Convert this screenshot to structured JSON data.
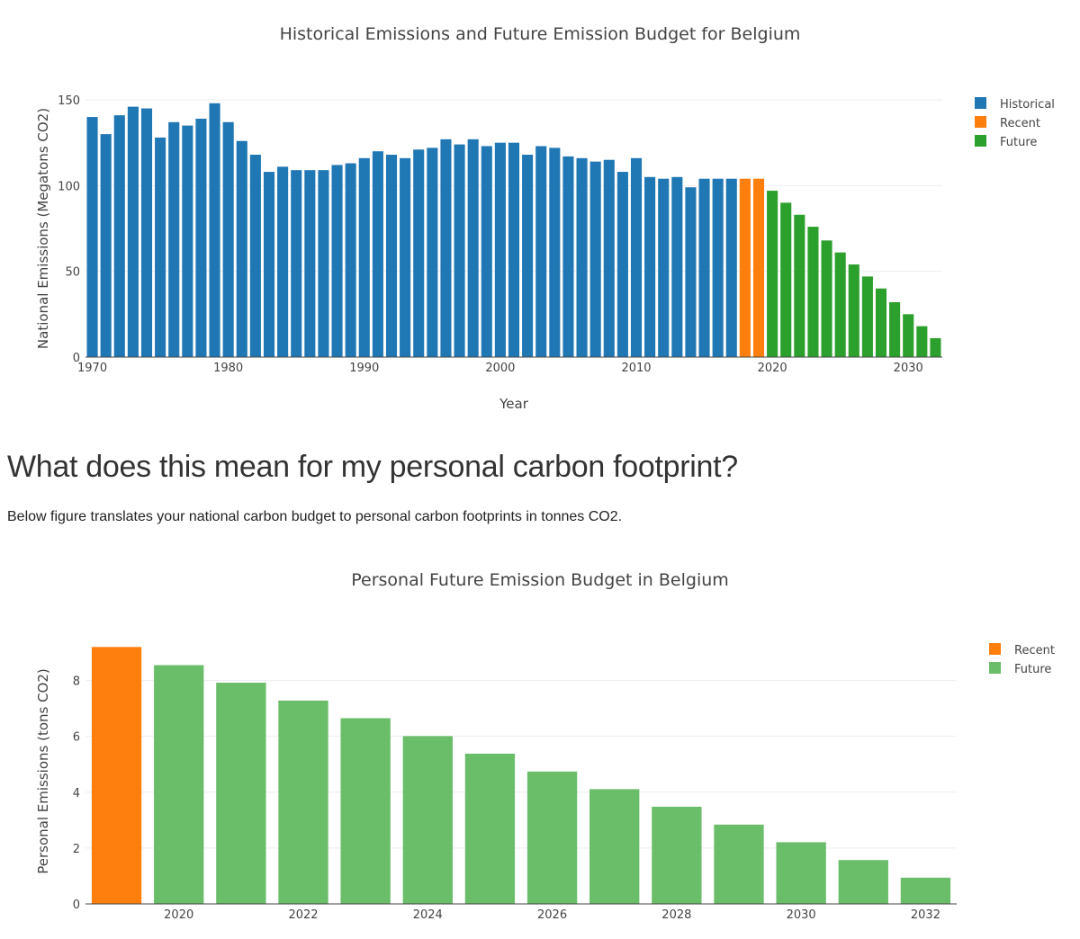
{
  "section": {
    "heading": "What does this mean for my personal carbon footprint?",
    "text": "Below figure translates your national carbon budget to personal carbon footprints in tonnes CO2."
  },
  "chart_data": [
    {
      "type": "bar",
      "title": "Historical Emissions and Future Emission Budget for Belgium",
      "xlabel": "Year",
      "ylabel": "National Emissions (Megatons CO2)",
      "xlim": [
        1969.5,
        2032.5
      ],
      "ylim": [
        0,
        150
      ],
      "xticks": [
        1970,
        1980,
        1990,
        2000,
        2010,
        2020,
        2030
      ],
      "yticks": [
        0,
        50,
        100,
        150
      ],
      "grid": true,
      "legend": "top-right",
      "series": [
        {
          "name": "Historical",
          "color": "#1f77b4",
          "x": [
            1970,
            1971,
            1972,
            1973,
            1974,
            1975,
            1976,
            1977,
            1978,
            1979,
            1980,
            1981,
            1982,
            1983,
            1984,
            1985,
            1986,
            1987,
            1988,
            1989,
            1990,
            1991,
            1992,
            1993,
            1994,
            1995,
            1996,
            1997,
            1998,
            1999,
            2000,
            2001,
            2002,
            2003,
            2004,
            2005,
            2006,
            2007,
            2008,
            2009,
            2010,
            2011,
            2012,
            2013,
            2014,
            2015,
            2016,
            2017
          ],
          "values": [
            140,
            130,
            141,
            146,
            145,
            128,
            137,
            135,
            139,
            148,
            137,
            126,
            118,
            108,
            111,
            109,
            109,
            109,
            112,
            113,
            116,
            120,
            118,
            116,
            121,
            122,
            127,
            124,
            127,
            123,
            125,
            125,
            118,
            123,
            122,
            117,
            116,
            114,
            115,
            108,
            116,
            105,
            104,
            105,
            99,
            104,
            104,
            104
          ]
        },
        {
          "name": "Recent",
          "color": "#ff7f0e",
          "x": [
            2018,
            2019
          ],
          "values": [
            104,
            104
          ]
        },
        {
          "name": "Future",
          "color": "#2ca02c",
          "x": [
            2020,
            2021,
            2022,
            2023,
            2024,
            2025,
            2026,
            2027,
            2028,
            2029,
            2030,
            2031,
            2032
          ],
          "values": [
            97,
            90,
            83,
            76,
            68,
            61,
            54,
            47,
            40,
            32,
            25,
            18,
            11
          ]
        }
      ]
    },
    {
      "type": "bar",
      "title": "Personal Future Emission Budget in Belgium",
      "xlabel": "",
      "ylabel": "Personal Emissions (tons CO2)",
      "xlim": [
        2018.5,
        2032.5
      ],
      "ylim": [
        0,
        9.5
      ],
      "xticks": [
        2020,
        2022,
        2024,
        2026,
        2028,
        2030,
        2032
      ],
      "yticks": [
        0,
        2,
        4,
        6,
        8
      ],
      "grid": true,
      "legend": "top-right",
      "series": [
        {
          "name": "Recent",
          "color": "#ff7f0e",
          "x": [
            2019
          ],
          "values": [
            9.2
          ]
        },
        {
          "name": "Future",
          "color": "#6abd69",
          "x": [
            2020,
            2021,
            2022,
            2023,
            2024,
            2025,
            2026,
            2027,
            2028,
            2029,
            2030,
            2031,
            2032
          ],
          "values": [
            8.55,
            7.92,
            7.28,
            6.65,
            6.01,
            5.38,
            4.74,
            4.11,
            3.48,
            2.84,
            2.21,
            1.57,
            0.94
          ]
        }
      ]
    }
  ]
}
